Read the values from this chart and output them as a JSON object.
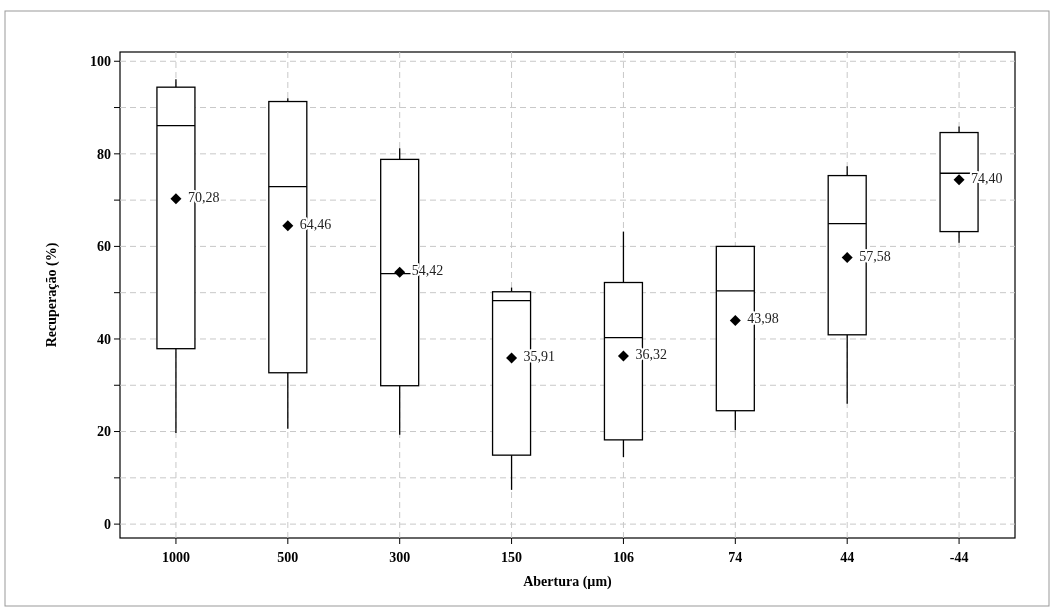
{
  "chart_data": {
    "type": "box",
    "xlabel": "Abertura (µm)",
    "ylabel": "Recuperação (%)",
    "categories": [
      "1000",
      "500",
      "300",
      "150",
      "106",
      "74",
      "44",
      "-44"
    ],
    "boxes": [
      {
        "low": 19.7,
        "q1": 37.9,
        "median": 86.1,
        "q3": 94.4,
        "high": 96.1,
        "mean": 70.28
      },
      {
        "low": 20.6,
        "q1": 32.7,
        "median": 72.9,
        "q3": 91.3,
        "high": 92,
        "mean": 64.46
      },
      {
        "low": 19.3,
        "q1": 29.9,
        "median": 54.1,
        "q3": 78.8,
        "high": 81.2,
        "mean": 54.42
      },
      {
        "low": 7.4,
        "q1": 14.9,
        "median": 48.3,
        "q3": 50.2,
        "high": 51.1,
        "mean": 35.91
      },
      {
        "low": 14.5,
        "q1": 18.2,
        "median": 40.3,
        "q3": 52.2,
        "high": 63.2,
        "mean": 36.32
      },
      {
        "low": 20.3,
        "q1": 24.5,
        "median": 50.4,
        "q3": 60,
        "high": 60,
        "mean": 43.98
      },
      {
        "low": 26,
        "q1": 40.9,
        "median": 64.9,
        "q3": 75.3,
        "high": 77.3,
        "mean": 57.58
      },
      {
        "low": 60.8,
        "q1": 63.2,
        "median": 75.8,
        "q3": 84.6,
        "high": 85.9,
        "mean": 74.4
      }
    ],
    "annotations": [
      "70,28",
      "64,46",
      "54,42",
      "35,91",
      "36,32",
      "43,98",
      "57,58",
      "74,40"
    ],
    "ylim": [
      -3,
      102
    ],
    "yticks": [
      0,
      {
        "value": 10,
        "label": null
      },
      20,
      {
        "value": 30,
        "label": null
      },
      40,
      {
        "value": 50,
        "label": null
      },
      60,
      {
        "value": 70,
        "label": null
      },
      80,
      {
        "value": 90,
        "label": null
      },
      100
    ],
    "grid": true,
    "marker": "diamond",
    "color": "#000000"
  }
}
